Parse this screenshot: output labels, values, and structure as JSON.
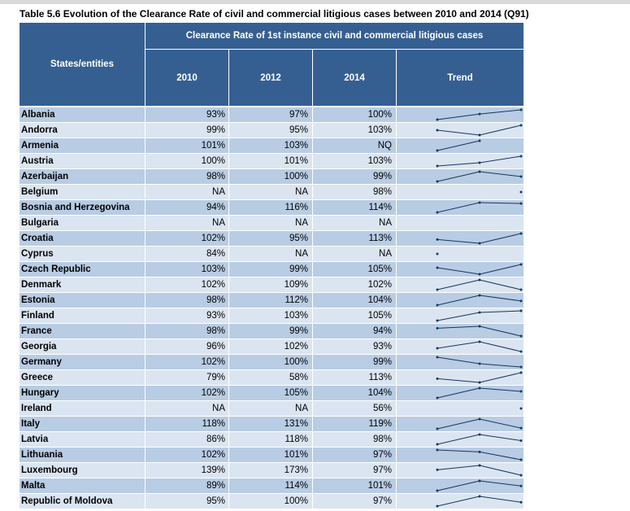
{
  "title": "Table 5.6 Evolution of the Clearance Rate of civil and commercial litigious cases between 2010 and 2014 (Q91)",
  "header": {
    "states_label": "States/entities",
    "group_label": "Clearance Rate of 1st instance civil and commercial litigious cases",
    "col_2010": "2010",
    "col_2012": "2012",
    "col_2014": "2014",
    "col_trend": "Trend"
  },
  "colors": {
    "header_bg": "#365f91",
    "row_dark": "#b8cce4",
    "row_light": "#dbe5f1",
    "trend_line": "#17375e"
  },
  "chart_data": {
    "type": "table",
    "columns": [
      "States/entities",
      "2010",
      "2012",
      "2014",
      "Trend"
    ],
    "rows": [
      {
        "name": "Albania",
        "v2010": "93%",
        "v2012": "97%",
        "v2014": "100%",
        "trend": [
          93,
          97,
          100
        ]
      },
      {
        "name": "Andorra",
        "v2010": "99%",
        "v2012": "95%",
        "v2014": "103%",
        "trend": [
          99,
          95,
          103
        ]
      },
      {
        "name": "Armenia",
        "v2010": "101%",
        "v2012": "103%",
        "v2014": "NQ",
        "trend": [
          101,
          103,
          null
        ]
      },
      {
        "name": "Austria",
        "v2010": "100%",
        "v2012": "101%",
        "v2014": "103%",
        "trend": [
          100,
          101,
          103
        ]
      },
      {
        "name": "Azerbaijan",
        "v2010": "98%",
        "v2012": "100%",
        "v2014": "99%",
        "trend": [
          98,
          100,
          99
        ]
      },
      {
        "name": "Belgium",
        "v2010": "NA",
        "v2012": "NA",
        "v2014": "98%",
        "trend": [
          null,
          null,
          98
        ]
      },
      {
        "name": "Bosnia and Herzegovina",
        "v2010": "94%",
        "v2012": "116%",
        "v2014": "114%",
        "trend": [
          94,
          116,
          114
        ]
      },
      {
        "name": "Bulgaria",
        "v2010": "NA",
        "v2012": "NA",
        "v2014": "NA",
        "trend": [
          null,
          null,
          null
        ]
      },
      {
        "name": "Croatia",
        "v2010": "102%",
        "v2012": "95%",
        "v2014": "113%",
        "trend": [
          102,
          95,
          113
        ]
      },
      {
        "name": "Cyprus",
        "v2010": "84%",
        "v2012": "NA",
        "v2014": "NA",
        "trend": [
          84,
          null,
          null
        ]
      },
      {
        "name": "Czech Republic",
        "v2010": "103%",
        "v2012": "99%",
        "v2014": "105%",
        "trend": [
          103,
          99,
          105
        ]
      },
      {
        "name": "Denmark",
        "v2010": "102%",
        "v2012": "109%",
        "v2014": "102%",
        "trend": [
          102,
          109,
          102
        ]
      },
      {
        "name": "Estonia",
        "v2010": "98%",
        "v2012": "112%",
        "v2014": "104%",
        "trend": [
          98,
          112,
          104
        ]
      },
      {
        "name": "Finland",
        "v2010": "93%",
        "v2012": "103%",
        "v2014": "105%",
        "trend": [
          93,
          103,
          105
        ]
      },
      {
        "name": "France",
        "v2010": "98%",
        "v2012": "99%",
        "v2014": "94%",
        "trend": [
          98,
          99,
          94
        ]
      },
      {
        "name": "Georgia",
        "v2010": "96%",
        "v2012": "102%",
        "v2014": "93%",
        "trend": [
          96,
          102,
          93
        ]
      },
      {
        "name": "Germany",
        "v2010": "102%",
        "v2012": "100%",
        "v2014": "99%",
        "trend": [
          102,
          100,
          99
        ]
      },
      {
        "name": "Greece",
        "v2010": "79%",
        "v2012": "58%",
        "v2014": "113%",
        "trend": [
          79,
          58,
          113
        ]
      },
      {
        "name": "Hungary",
        "v2010": "102%",
        "v2012": "105%",
        "v2014": "104%",
        "trend": [
          102,
          105,
          104
        ]
      },
      {
        "name": "Ireland",
        "v2010": "NA",
        "v2012": "NA",
        "v2014": "56%",
        "trend": [
          null,
          null,
          56
        ]
      },
      {
        "name": "Italy",
        "v2010": "118%",
        "v2012": "131%",
        "v2014": "119%",
        "trend": [
          118,
          131,
          119
        ]
      },
      {
        "name": "Latvia",
        "v2010": "86%",
        "v2012": "118%",
        "v2014": "98%",
        "trend": [
          86,
          118,
          98
        ]
      },
      {
        "name": "Lithuania",
        "v2010": "102%",
        "v2012": "101%",
        "v2014": "97%",
        "trend": [
          102,
          101,
          97
        ]
      },
      {
        "name": "Luxembourg",
        "v2010": "139%",
        "v2012": "173%",
        "v2014": "97%",
        "trend": [
          139,
          173,
          97
        ]
      },
      {
        "name": "Malta",
        "v2010": "89%",
        "v2012": "114%",
        "v2014": "101%",
        "trend": [
          89,
          114,
          101
        ]
      },
      {
        "name": "Republic of Moldova",
        "v2010": "95%",
        "v2012": "100%",
        "v2014": "97%",
        "trend": [
          95,
          100,
          97
        ]
      }
    ]
  }
}
